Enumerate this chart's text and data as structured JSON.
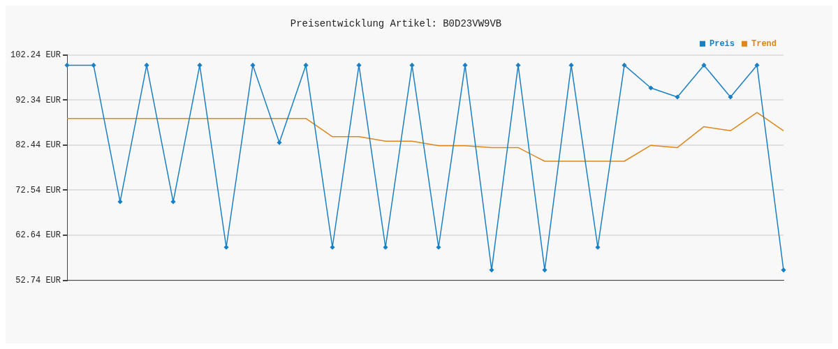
{
  "chart_data": {
    "type": "line",
    "title": "Preisentwicklung Artikel: B0D23VW9VB",
    "categories": [
      null,
      null,
      null,
      null,
      null,
      null,
      null,
      null,
      null,
      null,
      null,
      null,
      null,
      null,
      null,
      null,
      null,
      null,
      null,
      null,
      null,
      null,
      null,
      null,
      null,
      null,
      null,
      null
    ],
    "series": [
      {
        "name": "Preis",
        "color": "#1a7fc4",
        "marker": "diamond",
        "values": [
          100,
          100,
          70,
          100,
          70,
          100,
          60,
          100,
          83,
          100,
          60,
          100,
          60,
          100,
          60,
          100,
          55,
          100,
          55,
          100,
          60,
          100,
          95,
          93,
          100,
          93,
          100,
          55
        ]
      },
      {
        "name": "Trend",
        "color": "#e0861a",
        "marker": "none",
        "values": [
          88.3,
          88.3,
          88.3,
          88.3,
          88.3,
          88.3,
          88.3,
          88.3,
          88.3,
          88.3,
          84.3,
          84.3,
          83.3,
          83.3,
          82.3,
          82.3,
          81.9,
          81.9,
          78.9,
          78.9,
          78.9,
          78.9,
          82.4,
          81.9,
          86.5,
          85.6,
          89.6,
          85.6
        ]
      }
    ],
    "ylim": [
      52.74,
      102.24
    ],
    "yticks": [
      {
        "value": 52.74,
        "label": "52.74 EUR"
      },
      {
        "value": 62.64,
        "label": "62.64 EUR"
      },
      {
        "value": 72.54,
        "label": "72.54 EUR"
      },
      {
        "value": 82.44,
        "label": "82.44 EUR"
      },
      {
        "value": 92.34,
        "label": "92.34 EUR"
      },
      {
        "value": 102.24,
        "label": "102.24 EUR"
      }
    ],
    "grid": "y",
    "legend": "top right",
    "line_style": "solid"
  }
}
